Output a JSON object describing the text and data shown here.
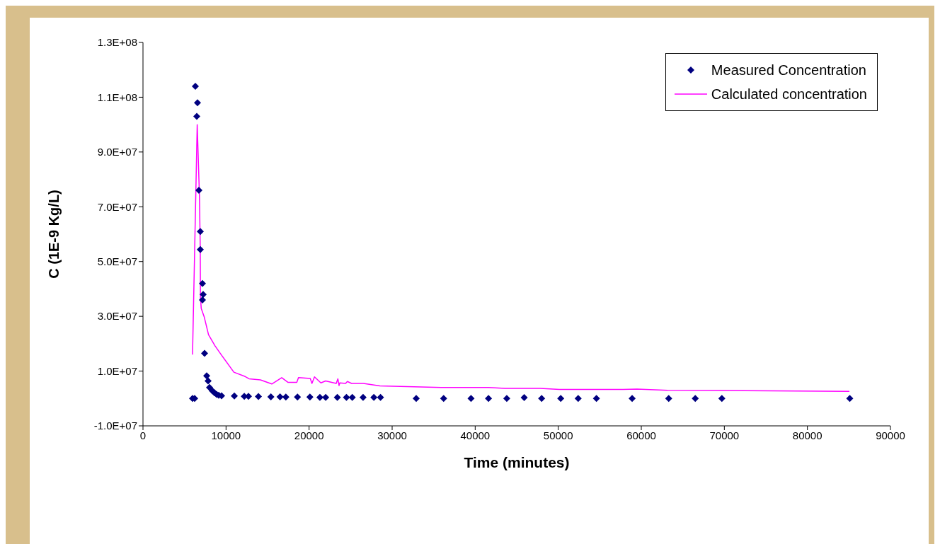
{
  "chart_data": {
    "type": "scatter",
    "xlabel": "Time (minutes)",
    "ylabel": "C (1E-9 Kg/L)",
    "xlim": [
      0,
      90000
    ],
    "xticks": [
      0,
      10000,
      20000,
      30000,
      40000,
      50000,
      60000,
      70000,
      80000,
      90000
    ],
    "ylim": [
      -10000000,
      130000000
    ],
    "yticks": [
      {
        "value": -10000000,
        "label": "-1.0E+07"
      },
      {
        "value": 10000000,
        "label": "1.0E+07"
      },
      {
        "value": 30000000,
        "label": "3.0E+07"
      },
      {
        "value": 50000000,
        "label": "5.0E+07"
      },
      {
        "value": 70000000,
        "label": "7.0E+07"
      },
      {
        "value": 90000000,
        "label": "9.0E+07"
      },
      {
        "value": 110000000,
        "label": "1.1E+08"
      },
      {
        "value": 130000000,
        "label": "1.3E+08"
      }
    ],
    "grid": false,
    "legend": "top right",
    "marker": "diamond",
    "series": [
      {
        "name": "Measured Concentration",
        "color": "#000080",
        "x": [
          5966,
          6222,
          6307,
          6477,
          6563,
          6733,
          6904,
          6904,
          7160,
          7160,
          7245,
          7415,
          7670,
          7841,
          8011,
          8352,
          8608,
          8863,
          9119,
          9460,
          11000,
          12200,
          12700,
          13900,
          15400,
          16500,
          17200,
          18600,
          20100,
          21300,
          22000,
          23400,
          24500,
          25200,
          26500,
          27800,
          28600,
          32900,
          36200,
          39500,
          41600,
          43800,
          45900,
          48000,
          50300,
          52400,
          54600,
          58900,
          63300,
          66500,
          69700,
          85100
        ],
        "values": [
          0,
          0,
          114000000,
          103000000,
          108000000,
          76000000,
          61000000,
          54400000,
          42000000,
          36000000,
          38000000,
          16500000,
          8300000,
          6400000,
          4000000,
          2800000,
          2100000,
          1500000,
          1200000,
          1000000,
          900000,
          800000,
          800000,
          700000,
          600000,
          600000,
          500000,
          500000,
          500000,
          400000,
          400000,
          400000,
          400000,
          400000,
          400000,
          400000,
          400000,
          0,
          0,
          0,
          0,
          0,
          300000,
          0,
          0,
          0,
          0,
          0,
          0,
          0,
          0,
          0
        ]
      },
      {
        "name": "Calculated concentration",
        "type": "line",
        "color": "#ff00ff",
        "marker": "none",
        "line_style": "solid",
        "x": [
          5966,
          6529,
          6801,
          6895,
          6921,
          7014,
          7381,
          7892,
          8659,
          9418,
          10943,
          12307,
          12768,
          14140,
          15512,
          16705,
          17447,
          18520,
          18725,
          20140,
          20344,
          20651,
          21418,
          21989,
          23268,
          23464,
          23608,
          23694,
          24401,
          24606,
          25117,
          26532,
          28526,
          35907,
          41592,
          43579,
          47840,
          50115,
          57786,
          59490,
          63155,
          85060
        ],
        "values": [
          16000000,
          100000000,
          73700000,
          55000000,
          36900000,
          32900000,
          29700000,
          23300000,
          19300000,
          16000000,
          9600000,
          8000000,
          7200000,
          6800000,
          5300000,
          7600000,
          5900000,
          5900000,
          7600000,
          7300000,
          5500000,
          7900000,
          5700000,
          6400000,
          5500000,
          7200000,
          4700000,
          5700000,
          5500000,
          6200000,
          5500000,
          5500000,
          4600000,
          4000000,
          4000000,
          3700000,
          3700000,
          3300000,
          3300000,
          3400000,
          3000000,
          2600000
        ]
      }
    ]
  }
}
